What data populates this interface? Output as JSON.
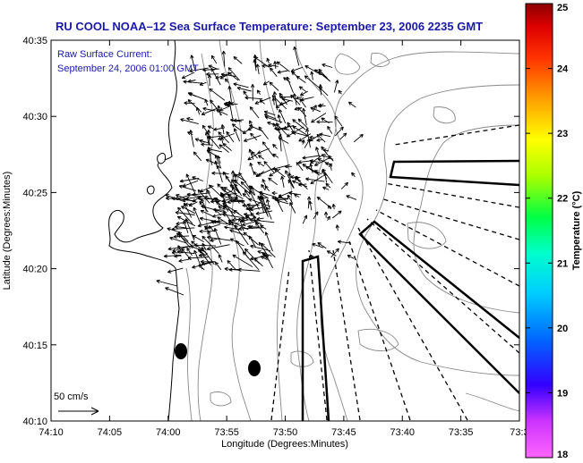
{
  "title": "RU COOL  NOAA–12  Sea Surface Temperature:  September 23, 2006 2235 GMT",
  "subtitle_line1": "Raw Surface Current:",
  "subtitle_line2": "September 24, 2006 01:00 GMT",
  "map": {
    "x_axis_label": "Longitude (Degrees:Minutes)",
    "y_axis_label": "Latitude (Degrees:Minutes)",
    "x_ticks": [
      "74:10",
      "74:05",
      "74:00",
      "73:55",
      "73:50",
      "73:45",
      "73:40",
      "73:35",
      "73:3"
    ],
    "y_ticks": [
      "40:35",
      "40:30",
      "40:25",
      "40:20",
      "40:15",
      "40:10"
    ],
    "scale_label": "50 cm/s",
    "colors": {
      "land_outline": "#000000",
      "bathymetry": "#888888",
      "vectors": "#000000",
      "frame": "#000000"
    }
  },
  "colorbar": {
    "label": "Temperature (°C)",
    "ticks": [
      "25",
      "24",
      "23",
      "22",
      "21",
      "20",
      "19",
      "18"
    ],
    "range": [
      18,
      25
    ],
    "colors": [
      "#8b0000",
      "#ff0000",
      "#ff7f00",
      "#ffff00",
      "#80ff00",
      "#00ff00",
      "#00ffcc",
      "#00aaff",
      "#0000ff",
      "#8000ff",
      "#ff00ff"
    ]
  },
  "chart_data": {
    "type": "vector_map",
    "title": "RU COOL  NOAA–12  Sea Surface Temperature:  September 23, 2006 2235 GMT",
    "xlabel": "Longitude (Degrees:Minutes)",
    "ylabel": "Latitude (Degrees:Minutes)",
    "xlim": [
      "74:10",
      "73:30"
    ],
    "ylim": [
      "40:10",
      "40:35"
    ],
    "colorbar_range": [
      18,
      25
    ],
    "colorbar_unit": "°C",
    "vector_scale": "50 cm/s"
  }
}
